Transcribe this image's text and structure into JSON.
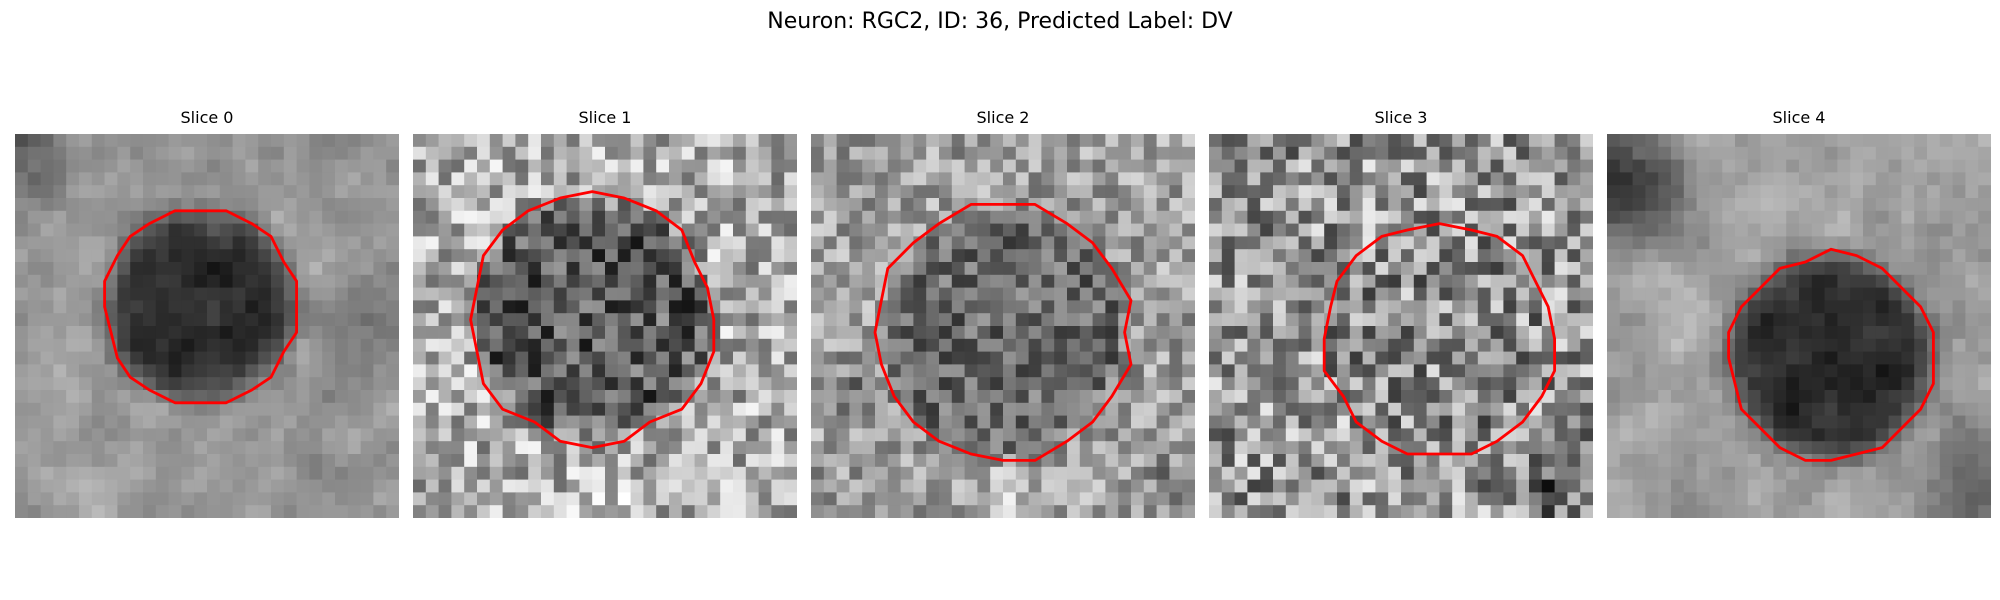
{
  "figure": {
    "title": "Neuron: RGC2, ID: 36, Predicted Label: DV",
    "outline_color": "#ff0000"
  },
  "panels": [
    {
      "title": "Slice 0"
    },
    {
      "title": "Slice 1"
    },
    {
      "title": "Slice 2"
    },
    {
      "title": "Slice 3"
    },
    {
      "title": "Slice 4"
    }
  ]
}
